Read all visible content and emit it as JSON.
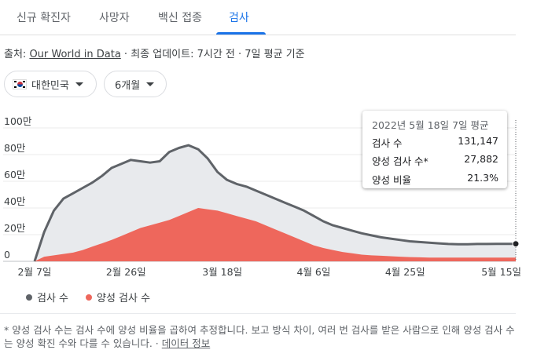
{
  "tabs": [
    {
      "label": "신규 확진자",
      "active": false
    },
    {
      "label": "사망자",
      "active": false
    },
    {
      "label": "백신 접종",
      "active": false
    },
    {
      "label": "검사",
      "active": true
    }
  ],
  "source": {
    "prefix": "출처: ",
    "link": "Our World in Data",
    "suffix": " · 최종 업데이트: 7시간 전 · 7일 평균 기준"
  },
  "filters": {
    "region": "대한민국",
    "region_icon": "korea-flag-icon",
    "period": "6개월"
  },
  "tooltip": {
    "title": "2022년 5월 18일 7일 평균",
    "rows": [
      {
        "label": "검사 수",
        "value": "131,147"
      },
      {
        "label": "양성 검사 수*",
        "value": "27,882"
      },
      {
        "label": "양성 비율",
        "value": "21.3%"
      }
    ]
  },
  "legend": [
    {
      "label": "검사 수",
      "color": "#5f6368"
    },
    {
      "label": "양성 검사 수",
      "color": "#ee675c"
    }
  ],
  "colors": {
    "accent": "#1a73e8",
    "tests_area": "#e8eaed",
    "tests_line": "#5f6368",
    "positive_area": "#ee675c"
  },
  "note": {
    "text": "* 양성 검사 수는 검사 수에 양성 비율을 곱하여 추정합니다. 보고 방식 차이, 여러 번 검사를 받은 사람으로 인해 양성 검사 수는 양성 확진 수와 다를 수 있습니다.",
    "link": "데이터 정보"
  },
  "chart_data": {
    "type": "area",
    "title": "",
    "xlabel": "",
    "ylabel": "",
    "ylim": [
      0,
      1000000
    ],
    "yticks": [
      0,
      200000,
      400000,
      600000,
      800000,
      1000000
    ],
    "ytick_labels": [
      "0",
      "20만",
      "40만",
      "60만",
      "80만",
      "100만"
    ],
    "xtick_labels": [
      "2월 7일",
      "2월 26일",
      "3월 18일",
      "4월 6일",
      "4월 25일",
      "5월 15일"
    ],
    "xtick_day_index": [
      0,
      19,
      39,
      58,
      77,
      97
    ],
    "x_day_index": [
      0,
      2,
      4,
      6,
      8,
      10,
      12,
      14,
      16,
      18,
      20,
      22,
      24,
      26,
      28,
      30,
      32,
      34,
      36,
      38,
      40,
      42,
      44,
      46,
      48,
      50,
      52,
      54,
      56,
      58,
      60,
      62,
      64,
      66,
      68,
      70,
      72,
      74,
      76,
      78,
      80,
      82,
      84,
      86,
      88,
      90,
      92,
      94,
      96,
      98,
      100
    ],
    "series": [
      {
        "name": "검사 수",
        "values": [
          0,
          220000,
          380000,
          470000,
          510000,
          550000,
          590000,
          640000,
          700000,
          730000,
          760000,
          750000,
          740000,
          750000,
          820000,
          850000,
          870000,
          840000,
          770000,
          670000,
          610000,
          580000,
          560000,
          530000,
          500000,
          470000,
          440000,
          410000,
          380000,
          340000,
          300000,
          270000,
          250000,
          230000,
          210000,
          195000,
          180000,
          170000,
          160000,
          150000,
          145000,
          140000,
          135000,
          130000,
          128000,
          128000,
          130000,
          130000,
          131000,
          131147,
          131147
        ]
      },
      {
        "name": "양성 검사 수",
        "values": [
          0,
          35000,
          45000,
          55000,
          65000,
          85000,
          110000,
          135000,
          160000,
          190000,
          220000,
          250000,
          270000,
          290000,
          310000,
          340000,
          370000,
          400000,
          390000,
          380000,
          360000,
          340000,
          320000,
          300000,
          270000,
          240000,
          210000,
          180000,
          150000,
          120000,
          100000,
          85000,
          70000,
          60000,
          50000,
          45000,
          42000,
          38000,
          35000,
          32000,
          30000,
          28000,
          28000,
          28000,
          27882,
          27882,
          27882,
          27882,
          27882,
          27882,
          27882
        ]
      }
    ],
    "highlight_day_index": 100,
    "legend_position": "bottom-left"
  }
}
